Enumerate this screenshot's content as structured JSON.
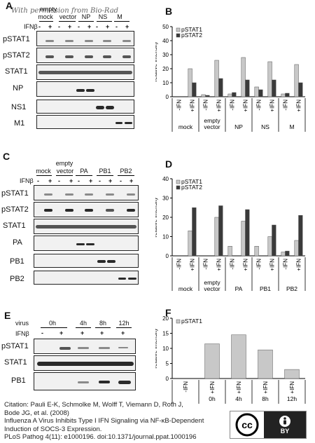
{
  "watermark": "With permission from Bio-Rad",
  "panels": {
    "A": {
      "letter": "A",
      "lanes": [
        {
          "label": "mock"
        },
        {
          "label": "empty vector",
          "top": "empty",
          "bottom": "vector"
        },
        {
          "label": "NP"
        },
        {
          "label": "NS"
        },
        {
          "label": "M"
        }
      ],
      "ifn_label": "IFNβ",
      "signs": [
        "-",
        "+",
        "-",
        "+",
        "-",
        "+",
        "-",
        "+",
        "-",
        "+"
      ],
      "rows": [
        "pSTAT1",
        "pSTAT2",
        "STAT1",
        "NP",
        "NS1",
        "M1"
      ]
    },
    "C": {
      "letter": "C",
      "lanes": [
        {
          "label": "mock"
        },
        {
          "label": "empty vector",
          "top": "empty",
          "bottom": "vector"
        },
        {
          "label": "PA"
        },
        {
          "label": "PB1"
        },
        {
          "label": "PB2"
        }
      ],
      "ifn_label": "IFNβ",
      "signs": [
        "-",
        "+",
        "-",
        "+",
        "-",
        "+",
        "-",
        "+",
        "-",
        "+"
      ],
      "rows": [
        "pSTAT1",
        "pSTAT2",
        "STAT1",
        "PA",
        "PB1",
        "PB2"
      ]
    },
    "E": {
      "letter": "E",
      "virus_label": "virus",
      "ifn_label": "IFNβ",
      "times": [
        "0h",
        "4h",
        "8h",
        "12h"
      ],
      "signs": [
        "-",
        "+",
        "+",
        "+",
        "+"
      ],
      "rows": [
        "pSTAT1",
        "STAT1",
        "PB1"
      ]
    }
  },
  "chart_data": [
    {
      "panel": "B",
      "type": "bar",
      "ylabel": "relative intensity",
      "ylim": [
        0,
        50
      ],
      "yticks": [
        0,
        10,
        20,
        30,
        40,
        50
      ],
      "legend": "top-left",
      "x_labels": [
        "-IFN",
        "+IFN",
        "-IFN",
        "+IFN",
        "-IFN",
        "+IFN",
        "-IFN",
        "+IFN",
        "-IFN",
        "+IFN"
      ],
      "groups": [
        "mock",
        "empty vector",
        "NP",
        "NS",
        "M"
      ],
      "series": [
        {
          "name": "pSTAT1",
          "color": "#c8c8c8",
          "values": [
            0,
            20,
            1.5,
            26,
            2,
            28,
            7,
            25,
            2,
            23
          ]
        },
        {
          "name": "pSTAT2",
          "color": "#3a3a3a",
          "values": [
            0,
            10,
            1,
            13,
            3,
            12,
            5,
            12,
            2.5,
            10
          ]
        }
      ]
    },
    {
      "panel": "D",
      "type": "bar",
      "ylabel": "relative intensity",
      "ylim": [
        0,
        40
      ],
      "yticks": [
        0,
        10,
        20,
        30,
        40
      ],
      "legend": "top-left",
      "x_labels": [
        "-IFN",
        "+IFN",
        "-IFN",
        "+IFN",
        "-IFN",
        "+IFN",
        "-IFN",
        "+IFN",
        "-IFN",
        "+IFN"
      ],
      "groups": [
        "mock",
        "empty vector",
        "PA",
        "PB1",
        "PB2"
      ],
      "series": [
        {
          "name": "pSTAT1",
          "color": "#c8c8c8",
          "values": [
            0,
            13,
            0,
            20,
            5,
            18,
            5,
            10,
            2,
            8
          ]
        },
        {
          "name": "pSTAT2",
          "color": "#3a3a3a",
          "values": [
            0,
            25,
            0,
            26,
            0,
            24,
            0,
            16,
            2.5,
            21
          ]
        }
      ]
    },
    {
      "panel": "F",
      "type": "bar",
      "ylabel": "relative intensity",
      "ylim": [
        0,
        20
      ],
      "yticks": [
        0,
        5,
        10,
        15,
        20
      ],
      "legend": "top-left",
      "x_labels": [
        "-IFN",
        "+IFN",
        "+IFN",
        "+IFN",
        "+IFN"
      ],
      "groups": [
        "",
        "0h",
        "4h",
        "8h",
        "12h"
      ],
      "series": [
        {
          "name": "pSTAT1",
          "color": "#c8c8c8",
          "values": [
            0,
            11.5,
            14.5,
            9.5,
            3
          ]
        }
      ]
    }
  ],
  "letters": {
    "B": "B",
    "D": "D",
    "F": "F"
  },
  "citation": [
    "Citation: Pauli E-K, Schmolke M, Wolff T, Viemann D, Roth J,",
    "Bode JG, et al. (2008)",
    "Influenza A Virus Inhibits Type I IFN Signaling via NF-κB-Dependent",
    "Induction of SOCS-3 Expression.",
    "PLoS Pathog 4(11): e1000196. doi:10.1371/journal.ppat.1000196"
  ],
  "license": {
    "cc": "cc",
    "by": "BY"
  }
}
